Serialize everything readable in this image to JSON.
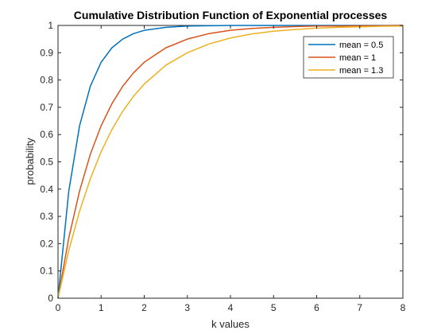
{
  "chart_data": {
    "type": "line",
    "title": "Cumulative Distribution Function of Exponential processes",
    "xlabel": "k values",
    "ylabel": "probability",
    "xlim": [
      0,
      8
    ],
    "ylim": [
      0,
      1
    ],
    "xticks": [
      "0",
      "1",
      "2",
      "3",
      "4",
      "5",
      "6",
      "7",
      "8"
    ],
    "yticks": [
      "0",
      "0.1",
      "0.2",
      "0.3",
      "0.4",
      "0.5",
      "0.6",
      "0.7",
      "0.8",
      "0.9",
      "1"
    ],
    "grid": false,
    "legend_position": "top-right",
    "x": [
      0,
      0.25,
      0.5,
      0.75,
      1,
      1.25,
      1.5,
      1.75,
      2,
      2.5,
      3,
      3.5,
      4,
      4.5,
      5,
      5.5,
      6,
      6.5,
      7,
      7.5,
      8
    ],
    "series": [
      {
        "name": "mean = 0.5",
        "color": "#0072BD",
        "values": [
          0,
          0.393,
          0.632,
          0.777,
          0.865,
          0.918,
          0.95,
          0.97,
          0.982,
          0.993,
          0.998,
          0.999,
          1.0,
          1.0,
          1.0,
          1.0,
          1.0,
          1.0,
          1.0,
          1.0,
          1.0
        ]
      },
      {
        "name": "mean = 1",
        "color": "#D95319",
        "values": [
          0,
          0.221,
          0.393,
          0.528,
          0.632,
          0.713,
          0.777,
          0.826,
          0.865,
          0.918,
          0.95,
          0.97,
          0.982,
          0.989,
          0.993,
          0.996,
          0.998,
          0.998,
          0.999,
          0.999,
          1.0
        ]
      },
      {
        "name": "mean = 1.3",
        "color": "#EDB120",
        "values": [
          0,
          0.175,
          0.319,
          0.438,
          0.537,
          0.618,
          0.685,
          0.74,
          0.785,
          0.854,
          0.9,
          0.932,
          0.954,
          0.969,
          0.979,
          0.985,
          0.99,
          0.993,
          0.995,
          0.997,
          0.998
        ]
      }
    ]
  }
}
